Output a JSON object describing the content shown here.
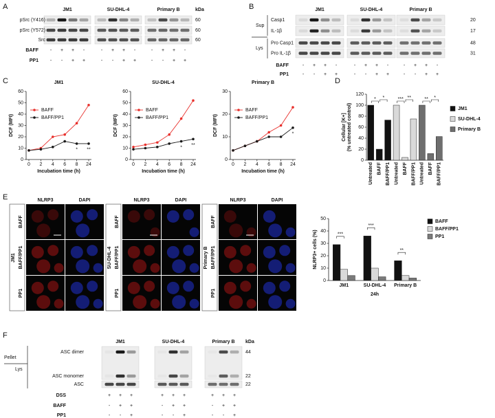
{
  "panel_labels": [
    "A",
    "B",
    "C",
    "D",
    "E",
    "F"
  ],
  "blot_a": {
    "cell_lines": [
      "JM1",
      "SU-DHL-4",
      "Primary B"
    ],
    "kda_label": "kDa",
    "rows": [
      {
        "label": "pSrc (Y416)",
        "kda": 60
      },
      {
        "label": "pSrc (Y572)",
        "kda": 60
      },
      {
        "label": "Src",
        "kda": 60
      }
    ],
    "treatments": [
      {
        "label": "BAFF",
        "signs": [
          "-",
          "+",
          "+",
          "-",
          "-",
          "+",
          "+",
          "-",
          "-",
          "+",
          "+",
          "-"
        ]
      },
      {
        "label": "PP1",
        "signs": [
          "-",
          "-",
          "+",
          "+",
          "-",
          "-",
          "+",
          "+",
          "-",
          "-",
          "+",
          "+"
        ]
      }
    ]
  },
  "blot_b": {
    "cell_lines": [
      "JM1",
      "SU-DHL-4",
      "Primary B"
    ],
    "sections": [
      {
        "label": "Sup"
      },
      {
        "label": "Lys"
      }
    ],
    "rows": [
      {
        "label": "Casp1",
        "kda": 20
      },
      {
        "label": "IL-1β",
        "kda": 17
      },
      {
        "label": "Pro Casp1",
        "kda": 48
      },
      {
        "label": "Pro IL-1β",
        "kda": 31
      }
    ],
    "treatments": [
      {
        "label": "BAFF",
        "signs": [
          "-",
          "+",
          "+",
          "-",
          "-",
          "+",
          "+",
          "-",
          "-",
          "+",
          "+",
          "-"
        ]
      },
      {
        "label": "PP1",
        "signs": [
          "-",
          "-",
          "+",
          "+",
          "-",
          "-",
          "+",
          "+",
          "-",
          "-",
          "+",
          "+"
        ]
      }
    ]
  },
  "microscopy": [
    {
      "cell_line": "JM1",
      "stains": [
        "NLRP3",
        "DAPI"
      ],
      "rows": [
        "BAFF",
        "BAFF/PP1",
        "PP1"
      ]
    },
    {
      "cell_line": "SU-DHL-4",
      "stains": [
        "NLRP3",
        "DAPI"
      ],
      "rows": [
        "BAFF",
        "BAFF/PP1",
        "PP1"
      ]
    },
    {
      "cell_line": "Primary B",
      "stains": [
        "NLRP3",
        "DAPI"
      ],
      "rows": [
        "BAFF",
        "BAFF/PP1",
        "PP1"
      ]
    }
  ],
  "blot_f": {
    "cell_lines": [
      "JM1",
      "SU-DHL-4",
      "Primary B"
    ],
    "kda_label": "kDa",
    "sections": [
      {
        "label": "Pellet"
      },
      {
        "label": "Lys"
      }
    ],
    "rows": [
      {
        "label": "ASC dimer",
        "kda": 44
      },
      {
        "label": "ASC monomer",
        "kda": 22
      },
      {
        "label": "ASC",
        "kda": 22
      }
    ],
    "treatments": [
      {
        "label": "DSS",
        "signs": [
          "+",
          "+",
          "+",
          "+",
          "+",
          "+",
          "+",
          "+",
          "+"
        ]
      },
      {
        "label": "BAFF",
        "signs": [
          "-",
          "+",
          "+",
          "-",
          "+",
          "+",
          "-",
          "+",
          "+"
        ]
      },
      {
        "label": "PP1",
        "signs": [
          "-",
          "-",
          "+",
          "-",
          "-",
          "+",
          "-",
          "-",
          "+"
        ]
      }
    ]
  },
  "chart_data": [
    {
      "type": "line",
      "title": "JM1",
      "xlabel": "Incubation time (h)",
      "ylabel": "DCF (MFI)",
      "categories": [
        "0",
        "2",
        "4",
        "6",
        "8",
        "24"
      ],
      "ylim": [
        0,
        60
      ],
      "yticks": [
        0,
        10,
        20,
        30,
        40,
        50,
        60
      ],
      "series": [
        {
          "name": "BAFF",
          "color": "#e8312d",
          "values": [
            8,
            10,
            20,
            22,
            32,
            48
          ]
        },
        {
          "name": "BAFF/PP1",
          "color": "#1a1a1a",
          "values": [
            8,
            9,
            11,
            16,
            14,
            14
          ]
        }
      ],
      "annotations": [
        {
          "label": "*",
          "category": "8"
        },
        {
          "label": "**",
          "category": "24"
        }
      ]
    },
    {
      "type": "line",
      "title": "SU-DHL-4",
      "xlabel": "Incubation time (h)",
      "ylabel": "DCF (MFI)",
      "categories": [
        "0",
        "2",
        "4",
        "6",
        "8",
        "24"
      ],
      "ylim": [
        0,
        60
      ],
      "yticks": [
        0,
        10,
        20,
        30,
        40,
        50,
        60
      ],
      "series": [
        {
          "name": "BAFF",
          "color": "#e8312d",
          "values": [
            11,
            13,
            15,
            22,
            36,
            52
          ]
        },
        {
          "name": "BAFF/PP1",
          "color": "#1a1a1a",
          "values": [
            9,
            10,
            11,
            14,
            16,
            18
          ]
        }
      ],
      "annotations": [
        {
          "label": "*",
          "category": "8"
        },
        {
          "label": "**",
          "category": "24"
        }
      ]
    },
    {
      "type": "line",
      "title": "Primary B",
      "xlabel": "Incubation time (h)",
      "ylabel": "DCF (MFI)",
      "categories": [
        "0",
        "2",
        "4",
        "6",
        "8",
        "24"
      ],
      "ylim": [
        0,
        30
      ],
      "yticks": [
        0,
        10,
        20,
        30
      ],
      "series": [
        {
          "name": "BAFF",
          "color": "#e8312d",
          "values": [
            4,
            6,
            8,
            12,
            15,
            23
          ]
        },
        {
          "name": "BAFF/PP1",
          "color": "#1a1a1a",
          "values": [
            4,
            6,
            8,
            10,
            10,
            14
          ]
        }
      ],
      "annotations": [
        {
          "label": "*",
          "category": "24"
        }
      ]
    },
    {
      "type": "bar",
      "ylabel": [
        "Cellular [K+]",
        "(% untreated control)"
      ],
      "categories": [
        "Untreated",
        "BAFF",
        "BAFF/PP1",
        "Untreated",
        "BAFF",
        "BAFF/PP1",
        "Untreated",
        "BAFF",
        "BAFF/PP1"
      ],
      "ylim": [
        0,
        120
      ],
      "yticks": [
        0,
        20,
        40,
        60,
        80,
        100,
        120
      ],
      "series": [
        {
          "name": "JM1",
          "color": "#111111",
          "values": [
            100,
            20,
            73,
            null,
            null,
            null,
            null,
            null,
            null
          ],
          "significance": [
            "*",
            "*"
          ]
        },
        {
          "name": "SU-DHL-4",
          "color": "#d9d9d9",
          "values": [
            null,
            null,
            null,
            100,
            5,
            75,
            null,
            null,
            null
          ],
          "significance": [
            "***",
            "**"
          ]
        },
        {
          "name": "Primary B",
          "color": "#6e6e6e",
          "values": [
            null,
            null,
            null,
            null,
            null,
            null,
            100,
            12,
            43
          ],
          "significance": [
            "**",
            "*"
          ]
        }
      ]
    },
    {
      "type": "bar",
      "ylabel": "NLRP3+ cells (%)",
      "xlabel": "24h",
      "categories": [
        "JM1",
        "SU-DHL-4",
        "Primary B"
      ],
      "ylim": [
        0,
        50
      ],
      "yticks": [
        0,
        10,
        20,
        30,
        40,
        50
      ],
      "series": [
        {
          "name": "BAFF",
          "color": "#111111",
          "values": [
            29,
            36,
            16
          ]
        },
        {
          "name": "BAFF/PP1",
          "color": "#d9d9d9",
          "values": [
            9,
            10,
            4
          ]
        },
        {
          "name": "PP1",
          "color": "#7a7a7a",
          "values": [
            4,
            3,
            2
          ]
        }
      ],
      "annotations": [
        "***",
        "***",
        "**"
      ]
    }
  ]
}
